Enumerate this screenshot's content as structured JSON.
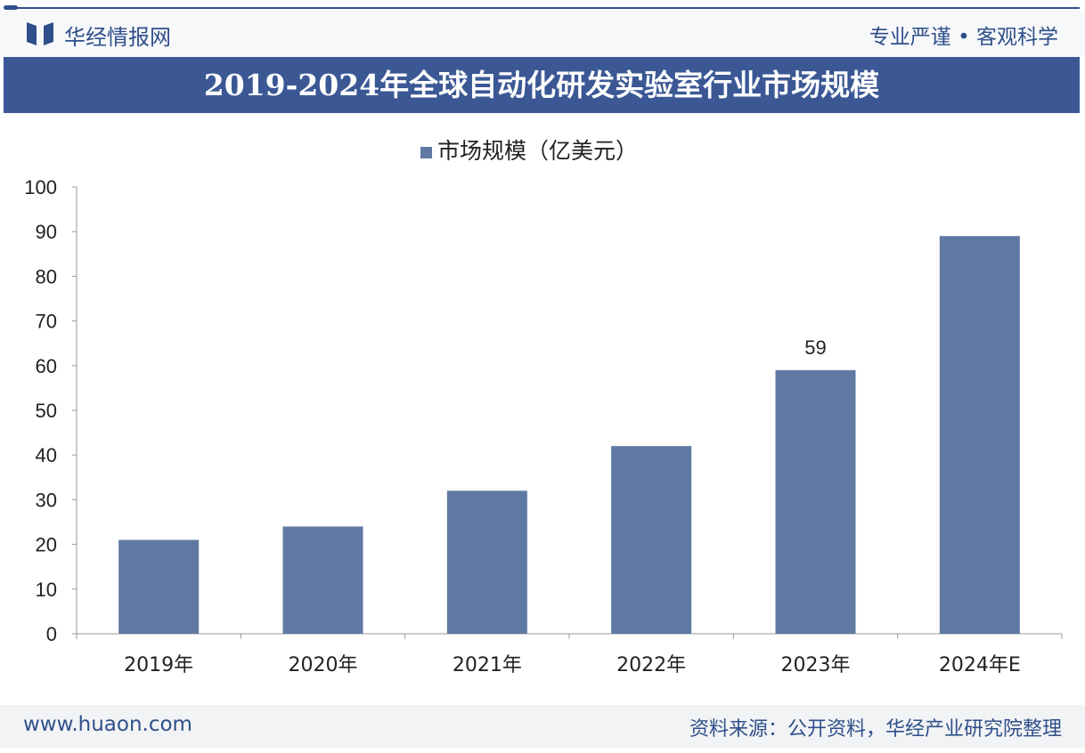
{
  "header": {
    "brand": "华经情报网",
    "slogan": "专业严谨 • 客观科学"
  },
  "footer": {
    "url": "www.huaon.com",
    "source": "资料来源：公开资料，华经产业研究院整理"
  },
  "colors": {
    "bar": "#6079a3",
    "title_bg": "#3b5895",
    "brand": "#2f4f8a"
  },
  "chart_data": {
    "type": "bar",
    "title": "2019-2024年全球自动化研发实验室行业市场规模",
    "legend": "市场规模（亿美元）",
    "legend_position": "top-center",
    "categories": [
      "2019年",
      "2020年",
      "2021年",
      "2022年",
      "2023年",
      "2024年E"
    ],
    "series": [
      {
        "name": "市场规模（亿美元）",
        "values": [
          21,
          24,
          32,
          42,
          59,
          89
        ]
      }
    ],
    "data_labels": [
      null,
      null,
      null,
      null,
      "59",
      null
    ],
    "ylim": [
      0,
      100
    ],
    "yticks": [
      "0",
      "10",
      "20",
      "30",
      "40",
      "50",
      "60",
      "70",
      "80",
      "90",
      "100"
    ],
    "xlabel": "",
    "ylabel": "",
    "grid": false
  }
}
